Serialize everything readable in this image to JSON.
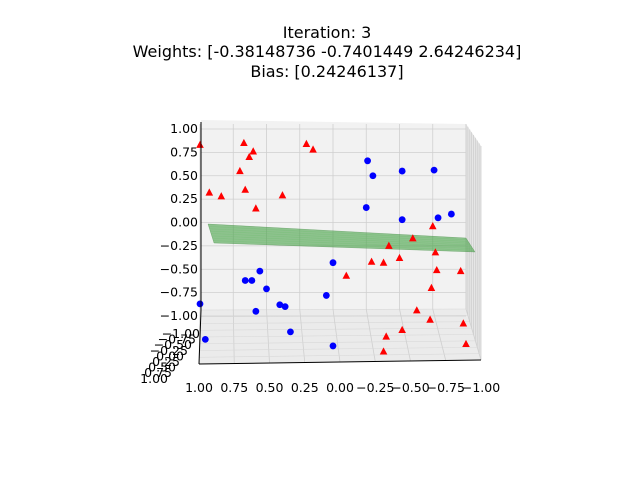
{
  "chart_data": {
    "type": "scatter",
    "projection": "3d",
    "title_lines": [
      "Iteration: 3",
      "Weights: [-0.38148736 -0.7401449    2.64246234]",
      "Bias: [0.24246137]"
    ],
    "xlabel": "",
    "ylabel": "",
    "zlabel": "",
    "x_ticks": [
      "1.00",
      "0.75",
      "0.50",
      "0.25",
      "0.00",
      "−0.25",
      "−0.50",
      "−0.75",
      "−1.00"
    ],
    "y_ticks": [
      "−1.00",
      "−0.75",
      "−0.50",
      "−0.25",
      "0.00",
      "0.25",
      "0.50",
      "0.75",
      "1.00"
    ],
    "z_ticks": [
      "1.00",
      "0.75",
      "0.50",
      "0.25",
      "0.00",
      "−0.25",
      "−0.50",
      "−0.75",
      "−1.00"
    ],
    "xlim": [
      1.0,
      -1.0
    ],
    "zlim": [
      -1.0,
      1.0
    ],
    "grid": true,
    "plane": {
      "color": "#3a9a3a",
      "opacity": 0.55
    },
    "series": [
      {
        "marker": "triangle",
        "color": "#ff0000",
        "points": [
          {
            "x": 1.0,
            "z": 0.83
          },
          {
            "x": 0.93,
            "z": 0.32
          },
          {
            "x": 0.84,
            "z": 0.28
          },
          {
            "x": 0.67,
            "z": 0.85
          },
          {
            "x": 0.63,
            "z": 0.7
          },
          {
            "x": 0.6,
            "z": 0.76
          },
          {
            "x": 0.7,
            "z": 0.55
          },
          {
            "x": 0.66,
            "z": 0.35
          },
          {
            "x": 0.58,
            "z": 0.15
          },
          {
            "x": 0.38,
            "z": 0.29
          },
          {
            "x": 0.2,
            "z": 0.84
          },
          {
            "x": 0.15,
            "z": 0.78
          },
          {
            "x": -0.1,
            "z": -0.57
          },
          {
            "x": -0.29,
            "z": -0.42
          },
          {
            "x": -0.38,
            "z": -0.43
          },
          {
            "x": -0.42,
            "z": -0.25
          },
          {
            "x": -0.5,
            "z": -0.38
          },
          {
            "x": -0.6,
            "z": -0.17
          },
          {
            "x": -0.75,
            "z": -0.04
          },
          {
            "x": -0.77,
            "z": -0.32
          },
          {
            "x": -0.78,
            "z": -0.51
          },
          {
            "x": -0.96,
            "z": -0.52
          },
          {
            "x": -0.74,
            "z": -0.7
          },
          {
            "x": -0.63,
            "z": -0.94
          },
          {
            "x": -0.52,
            "z": -1.15
          },
          {
            "x": -0.4,
            "z": -1.22
          },
          {
            "x": -0.73,
            "z": -1.04
          },
          {
            "x": -0.98,
            "z": -1.08
          },
          {
            "x": -0.38,
            "z": -1.38
          },
          {
            "x": -1.0,
            "z": -1.3
          }
        ]
      },
      {
        "marker": "circle",
        "color": "#0000ff",
        "points": [
          {
            "x": -0.26,
            "z": 0.66
          },
          {
            "x": -0.3,
            "z": 0.5
          },
          {
            "x": -0.52,
            "z": 0.55
          },
          {
            "x": -0.76,
            "z": 0.56
          },
          {
            "x": -0.25,
            "z": 0.16
          },
          {
            "x": -0.52,
            "z": 0.03
          },
          {
            "x": -0.79,
            "z": 0.05
          },
          {
            "x": -0.89,
            "z": 0.09
          },
          {
            "x": 0.0,
            "z": -0.43
          },
          {
            "x": 0.55,
            "z": -0.52
          },
          {
            "x": 0.66,
            "z": -0.62
          },
          {
            "x": 0.61,
            "z": -0.62
          },
          {
            "x": 0.5,
            "z": -0.71
          },
          {
            "x": 0.05,
            "z": -0.78
          },
          {
            "x": 0.4,
            "z": -0.88
          },
          {
            "x": 0.36,
            "z": -0.9
          },
          {
            "x": 1.0,
            "z": -0.87
          },
          {
            "x": 0.58,
            "z": -0.95
          },
          {
            "x": 0.32,
            "z": -1.17
          },
          {
            "x": 0.96,
            "z": -1.25
          },
          {
            "x": 0.0,
            "z": -1.32
          }
        ]
      }
    ]
  }
}
